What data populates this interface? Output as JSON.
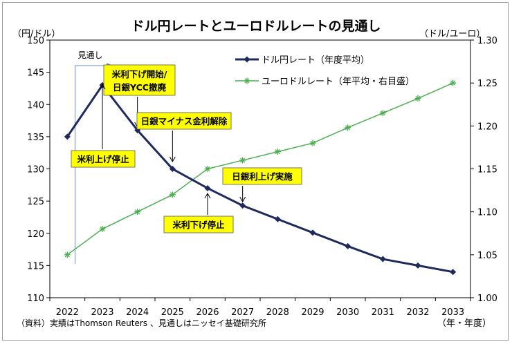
{
  "chart_data": {
    "type": "line",
    "title": "ドル円レートとユーロドルレートの見通し",
    "y_left_unit": "（円/ドル）",
    "y_right_unit": "（ドル/ユーロ）",
    "x_unit": "（年・年度）",
    "source": "（資料）実績はThomson Reuters 、見通しはニッセイ基礎研究所",
    "forecast_label": "見通し",
    "x": [
      "2022",
      "2023",
      "2024",
      "2025",
      "2026",
      "2027",
      "2028",
      "2029",
      "2030",
      "2031",
      "2032",
      "2033"
    ],
    "ylim_left": [
      110,
      150
    ],
    "yticks_left": [
      "110",
      "115",
      "120",
      "125",
      "130",
      "135",
      "140",
      "145",
      "150"
    ],
    "ylim_right": [
      1.0,
      1.3
    ],
    "yticks_right": [
      "1.00",
      "1.05",
      "1.10",
      "1.15",
      "1.20",
      "1.25",
      "1.30"
    ],
    "series": [
      {
        "name": "ドル円レート（年度平均）",
        "axis": "left",
        "color": "#1f2a5c",
        "marker": "diamond",
        "values": [
          135,
          143,
          136,
          130,
          127,
          124.3,
          122.2,
          120.1,
          118,
          116,
          115,
          114
        ]
      },
      {
        "name": "ユーロドルレート（年平均・右目盛）",
        "axis": "right",
        "color": "#4caf50",
        "marker": "asterisk",
        "values": [
          1.05,
          1.08,
          1.1,
          1.12,
          1.15,
          1.16,
          1.17,
          1.18,
          1.198,
          1.215,
          1.232,
          1.25
        ]
      }
    ],
    "annotations": [
      {
        "text": "米利下げ開始/",
        "text2": "日銀YCC撤廃",
        "x_index": 2,
        "y": 136
      },
      {
        "text": "日銀マイナス金利解除",
        "x_index": 3,
        "y": 130
      },
      {
        "text": "米利上げ停止",
        "x_index": 1,
        "y": 143
      },
      {
        "text": "日銀利上げ実施",
        "x_index": 5,
        "y": 124.3
      },
      {
        "text": "米利下げ停止",
        "x_index": 4,
        "y": 127
      }
    ],
    "grid": false,
    "legend_position": "top-right"
  }
}
